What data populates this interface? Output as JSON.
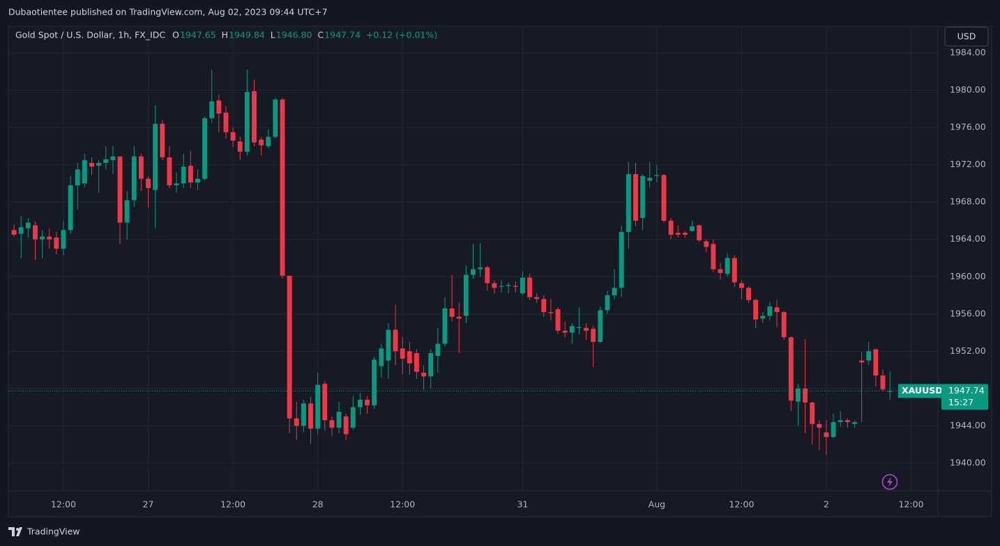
{
  "header": {
    "publisher": "Dubaotientee published on TradingView.com, Aug 02, 2023 09:44 UTC+7"
  },
  "footer": {
    "brand": "TradingView"
  },
  "legend": {
    "symbol": "Gold Spot / U.S. Dollar, 1h, FX_IDC",
    "fields": [
      {
        "label": "O",
        "value": "1947.65"
      },
      {
        "label": "H",
        "value": "1949.84"
      },
      {
        "label": "L",
        "value": "1946.80"
      },
      {
        "label": "C",
        "value": "1947.74"
      }
    ],
    "change": "+0.12 (+0.01%)"
  },
  "currency": "USD",
  "chart_data": {
    "type": "candlestick",
    "up_color": "#089981",
    "down_color": "#f23645",
    "grid": true,
    "ylim": [
      1937.01,
      1986.84
    ],
    "yticks": [
      {
        "value": 1940,
        "label": "1940.00"
      },
      {
        "value": 1944,
        "label": "1944.00"
      },
      {
        "value": 1948,
        "label": "1948.00"
      },
      {
        "value": 1952,
        "label": "1952.00"
      },
      {
        "value": 1956,
        "label": "1956.00"
      },
      {
        "value": 1960,
        "label": "1960.00"
      },
      {
        "value": 1964,
        "label": "1964.00"
      },
      {
        "value": 1968,
        "label": "1968.00"
      },
      {
        "value": 1972,
        "label": "1972.00"
      },
      {
        "value": 1976,
        "label": "1976.00"
      },
      {
        "value": 1980,
        "label": "1980.00"
      },
      {
        "value": 1984,
        "label": "1984.00"
      }
    ],
    "xlim": [
      -0.8,
      130.8
    ],
    "xticks": [
      {
        "value": 7,
        "label": "12:00"
      },
      {
        "value": 19,
        "label": "27"
      },
      {
        "value": 31,
        "label": "12:00"
      },
      {
        "value": 43,
        "label": "28"
      },
      {
        "value": 55,
        "label": "12:00"
      },
      {
        "value": 72,
        "label": "31"
      },
      {
        "value": 91,
        "label": "Aug"
      },
      {
        "value": 103,
        "label": "12:00"
      },
      {
        "value": 115,
        "label": "2"
      },
      {
        "value": 127,
        "label": "12:00"
      }
    ],
    "open": [
      1965.0,
      1964.6,
      1965.2,
      1965.5,
      1964.0,
      1964.3,
      1964.2,
      1963.0,
      1965.0,
      1969.8,
      1970.0,
      1972.2,
      1971.9,
      1972.2,
      1972.5,
      1972.9,
      1965.8,
      1968.2,
      1972.9,
      1970.5,
      1969.3,
      1976.4,
      1972.8,
      1969.8,
      1970.0,
      1971.9,
      1970.1,
      1970.5,
      1977.0,
      1978.9,
      1977.6,
      1975.5,
      1974.5,
      1973.4,
      1979.9,
      1974.7,
      1974.0,
      1975.0,
      1979.0,
      1960.1,
      1944.8,
      1944.0,
      1946.4,
      1943.7,
      1948.5,
      1944.6,
      1943.8,
      1945.0,
      1943.8,
      1946.0,
      1946.8,
      1946.2,
      1950.4,
      1951.0,
      1954.3,
      1952.3,
      1952.0,
      1951.8,
      1949.7,
      1949.3,
      1951.5,
      1952.8,
      1956.6,
      1955.7,
      1955.8,
      1960.2,
      1960.8,
      1961.0,
      1959.3,
      1958.9,
      1959.0,
      1959.0,
      1958.2,
      1959.9,
      1957.8,
      1957.6,
      1956.2,
      1956.5,
      1954.2,
      1954.0,
      1954.5,
      1954.5,
      1954.4,
      1953.0,
      1956.4,
      1958.0,
      1958.8,
      1964.8,
      1971.0,
      1966.3,
      1970.3,
      1970.8,
      1970.9,
      1966.0,
      1964.7,
      1964.7,
      1964.9,
      1965.5,
      1963.8,
      1963.5,
      1960.8,
      1960.3,
      1962.0,
      1959.3,
      1958.8,
      1957.5,
      1955.5,
      1955.8,
      1956.7,
      1956.2,
      1953.5,
      1946.6,
      1948.0,
      1946.5,
      1944.2,
      1943.3,
      1942.8,
      1944.4,
      1944.6,
      1944.2,
      1951.0,
      1951.0,
      1952.2,
      1949.4,
      1947.65
    ],
    "high": [
      1965.6,
      1966.5,
      1966.3,
      1965.9,
      1965.0,
      1965.2,
      1964.8,
      1966.0,
      1970.8,
      1972.2,
      1973.2,
      1972.8,
      1972.5,
      1974.0,
      1974.0,
      1972.9,
      1969.2,
      1974.0,
      1973.2,
      1970.8,
      1978.4,
      1976.8,
      1974.0,
      1971.2,
      1973.2,
      1973.5,
      1971.5,
      1977.2,
      1982.2,
      1979.5,
      1978.3,
      1976.0,
      1975.0,
      1982.2,
      1981.1,
      1975.0,
      1975.8,
      1979.2,
      1979.2,
      1960.1,
      1946.6,
      1946.8,
      1947.1,
      1949.7,
      1948.8,
      1945.0,
      1946.6,
      1945.3,
      1947.2,
      1947.5,
      1947.2,
      1951.4,
      1952.8,
      1955.0,
      1957.0,
      1953.5,
      1953.0,
      1952.2,
      1950.5,
      1952.2,
      1954.5,
      1957.8,
      1960.2,
      1957.2,
      1961.2,
      1963.5,
      1963.6,
      1961.2,
      1959.6,
      1959.6,
      1959.4,
      1959.5,
      1960.6,
      1960.3,
      1958.2,
      1958.0,
      1957.6,
      1956.7,
      1955.2,
      1955.0,
      1956.7,
      1955.0,
      1954.7,
      1956.8,
      1958.5,
      1960.8,
      1965.5,
      1972.3,
      1972.2,
      1971.0,
      1972.3,
      1972.0,
      1971.0,
      1966.3,
      1965.5,
      1964.9,
      1966.0,
      1965.6,
      1964.0,
      1964.0,
      1961.5,
      1962.5,
      1962.3,
      1959.6,
      1959.0,
      1957.6,
      1956.2,
      1957.3,
      1957.5,
      1956.3,
      1953.6,
      1948.5,
      1953.3,
      1946.6,
      1944.6,
      1944.6,
      1945.3,
      1945.6,
      1944.8,
      1944.6,
      1951.9,
      1953.0,
      1952.3,
      1950.0,
      1949.84
    ],
    "low": [
      1964.3,
      1962.0,
      1964.2,
      1961.8,
      1962.0,
      1963.0,
      1962.4,
      1962.3,
      1964.6,
      1967.2,
      1969.6,
      1970.9,
      1969.0,
      1971.5,
      1971.0,
      1963.5,
      1964.0,
      1967.5,
      1969.2,
      1967.4,
      1965.2,
      1972.5,
      1969.5,
      1969.0,
      1969.5,
      1969.5,
      1969.3,
      1970.3,
      1976.5,
      1975.5,
      1974.8,
      1973.9,
      1972.5,
      1973.0,
      1974.0,
      1973.0,
      1973.8,
      1974.8,
      1959.8,
      1943.2,
      1942.5,
      1943.3,
      1942.1,
      1943.1,
      1943.5,
      1942.9,
      1943.2,
      1942.5,
      1943.6,
      1945.2,
      1945.3,
      1945.8,
      1949.2,
      1949.0,
      1950.5,
      1949.5,
      1949.5,
      1949.0,
      1947.9,
      1948.0,
      1949.7,
      1952.5,
      1955.2,
      1951.8,
      1955.0,
      1959.8,
      1960.0,
      1958.5,
      1958.2,
      1958.3,
      1958.2,
      1958.3,
      1958.0,
      1957.5,
      1957.2,
      1955.7,
      1955.3,
      1953.8,
      1953.5,
      1952.8,
      1953.8,
      1953.2,
      1950.3,
      1952.9,
      1956.0,
      1957.5,
      1957.8,
      1963.0,
      1965.4,
      1965.0,
      1969.6,
      1970.1,
      1965.8,
      1964.0,
      1964.2,
      1964.2,
      1964.8,
      1963.7,
      1962.6,
      1960.5,
      1959.7,
      1960.0,
      1958.9,
      1957.6,
      1957.2,
      1954.5,
      1955.0,
      1955.3,
      1954.6,
      1953.2,
      1945.6,
      1944.0,
      1943.2,
      1942.0,
      1941.4,
      1940.9,
      1942.7,
      1943.9,
      1943.8,
      1943.8,
      1944.4,
      1950.5,
      1948.2,
      1947.7,
      1946.8
    ],
    "close": [
      1964.5,
      1965.3,
      1965.8,
      1964.0,
      1964.3,
      1964.0,
      1963.0,
      1965.0,
      1969.8,
      1971.5,
      1972.5,
      1971.8,
      1972.2,
      1972.6,
      1972.9,
      1965.8,
      1968.2,
      1972.9,
      1970.5,
      1969.5,
      1976.4,
      1972.8,
      1969.8,
      1970.0,
      1971.8,
      1970.1,
      1970.5,
      1977.0,
      1978.8,
      1977.5,
      1975.5,
      1974.6,
      1973.4,
      1979.8,
      1974.4,
      1974.1,
      1975.0,
      1979.0,
      1960.1,
      1944.8,
      1944.0,
      1946.4,
      1943.7,
      1948.4,
      1944.6,
      1943.8,
      1945.5,
      1943.1,
      1946.0,
      1946.8,
      1946.2,
      1951.1,
      1952.3,
      1954.3,
      1952.0,
      1951.2,
      1950.7,
      1949.8,
      1949.3,
      1951.8,
      1952.8,
      1956.6,
      1955.7,
      1955.5,
      1960.2,
      1960.8,
      1961.0,
      1959.3,
      1958.8,
      1959.0,
      1959.1,
      1958.9,
      1959.9,
      1957.8,
      1957.6,
      1956.2,
      1956.1,
      1954.2,
      1954.0,
      1954.7,
      1954.6,
      1954.2,
      1953.0,
      1956.4,
      1958.0,
      1958.8,
      1964.8,
      1971.0,
      1966.0,
      1970.8,
      1970.6,
      1970.9,
      1966.0,
      1964.5,
      1964.5,
      1964.5,
      1965.4,
      1963.9,
      1963.2,
      1960.8,
      1960.4,
      1962.0,
      1959.4,
      1958.8,
      1957.5,
      1955.4,
      1955.8,
      1956.8,
      1956.2,
      1953.5,
      1946.7,
      1948.0,
      1946.5,
      1944.2,
      1943.8,
      1942.8,
      1944.4,
      1944.6,
      1944.4,
      1944.4,
      1950.8,
      1952.0,
      1949.4,
      1947.9,
      1947.74
    ],
    "last_price": {
      "name": "XAUUSD",
      "value": 1947.74,
      "label": "1947.74",
      "countdown": "15:27"
    }
  }
}
